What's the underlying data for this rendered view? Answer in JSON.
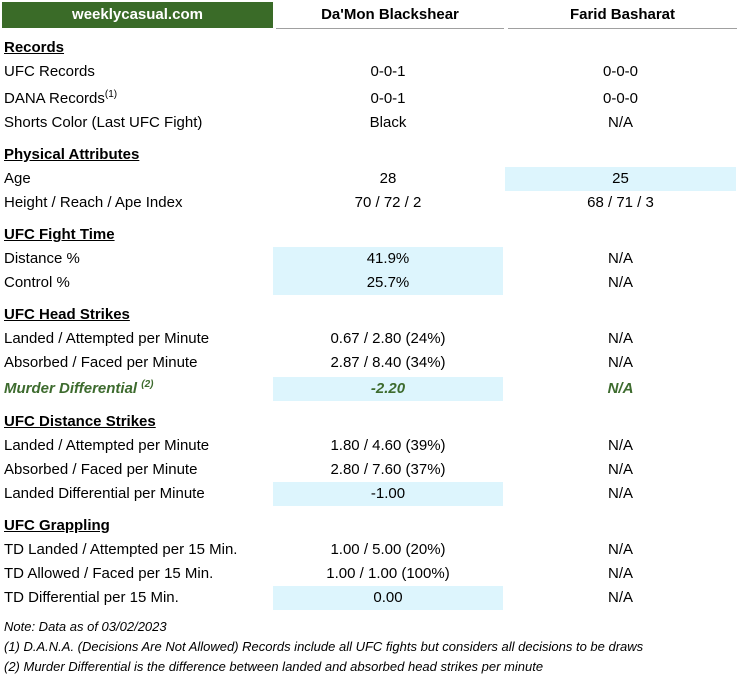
{
  "brand": "weeklycasual.com",
  "fighters": {
    "f1": "Da'Mon Blackshear",
    "f2": "Farid Basharat"
  },
  "sections": {
    "records": {
      "title": "Records",
      "ufc_records": {
        "label": "UFC Records",
        "f1": "0-0-1",
        "f2": "0-0-0"
      },
      "dana_records": {
        "label": "DANA Records",
        "sup": "(1)",
        "f1": "0-0-1",
        "f2": "0-0-0"
      },
      "shorts_color": {
        "label": "Shorts Color (Last UFC Fight)",
        "f1": "Black",
        "f2": "N/A"
      }
    },
    "physical": {
      "title": "Physical Attributes",
      "age": {
        "label": "Age",
        "f1": "28",
        "f2": "25"
      },
      "height_reach": {
        "label": "Height / Reach / Ape Index",
        "f1": "70 / 72 / 2",
        "f2": "68 / 71 / 3"
      }
    },
    "fight_time": {
      "title": "UFC Fight Time",
      "distance": {
        "label": "Distance %",
        "f1": "41.9%",
        "f2": "N/A"
      },
      "control": {
        "label": "Control %",
        "f1": "25.7%",
        "f2": "N/A"
      }
    },
    "head_strikes": {
      "title": "UFC Head Strikes",
      "landed": {
        "label": "Landed / Attempted per Minute",
        "f1": "0.67 / 2.80 (24%)",
        "f2": "N/A"
      },
      "absorbed": {
        "label": "Absorbed / Faced per Minute",
        "f1": "2.87 / 8.40 (34%)",
        "f2": "N/A"
      },
      "murder": {
        "label": "Murder Differential ",
        "sup": "(2)",
        "f1": "-2.20",
        "f2": "N/A"
      }
    },
    "distance_strikes": {
      "title": "UFC Distance Strikes",
      "landed": {
        "label": "Landed / Attempted per Minute",
        "f1": "1.80 / 4.60 (39%)",
        "f2": "N/A"
      },
      "absorbed": {
        "label": "Absorbed / Faced per Minute",
        "f1": "2.80 / 7.60 (37%)",
        "f2": "N/A"
      },
      "differential": {
        "label": "Landed Differential per Minute",
        "f1": "-1.00",
        "f2": "N/A"
      }
    },
    "grappling": {
      "title": "UFC Grappling",
      "td_landed": {
        "label": "TD Landed / Attempted per 15 Min.",
        "f1": "1.00 / 5.00 (20%)",
        "f2": "N/A"
      },
      "td_allowed": {
        "label": "TD Allowed / Faced per 15 Min.",
        "f1": "1.00 / 1.00 (100%)",
        "f2": "N/A"
      },
      "td_differential": {
        "label": "TD Differential per 15 Min.",
        "f1": "0.00",
        "f2": "N/A"
      }
    }
  },
  "notes": {
    "date": "Note: Data as of 03/02/2023",
    "note1": "(1) D.A.N.A. (Decisions Are Not Allowed) Records include all UFC fights but considers all decisions to be draws",
    "note2": "(2) Murder Differential is the difference between landed and absorbed head strikes per minute"
  },
  "colors": {
    "brand_bg": "#3a6b28",
    "highlight": "#ddf5fd",
    "murder_text": "#3d6b2e"
  }
}
